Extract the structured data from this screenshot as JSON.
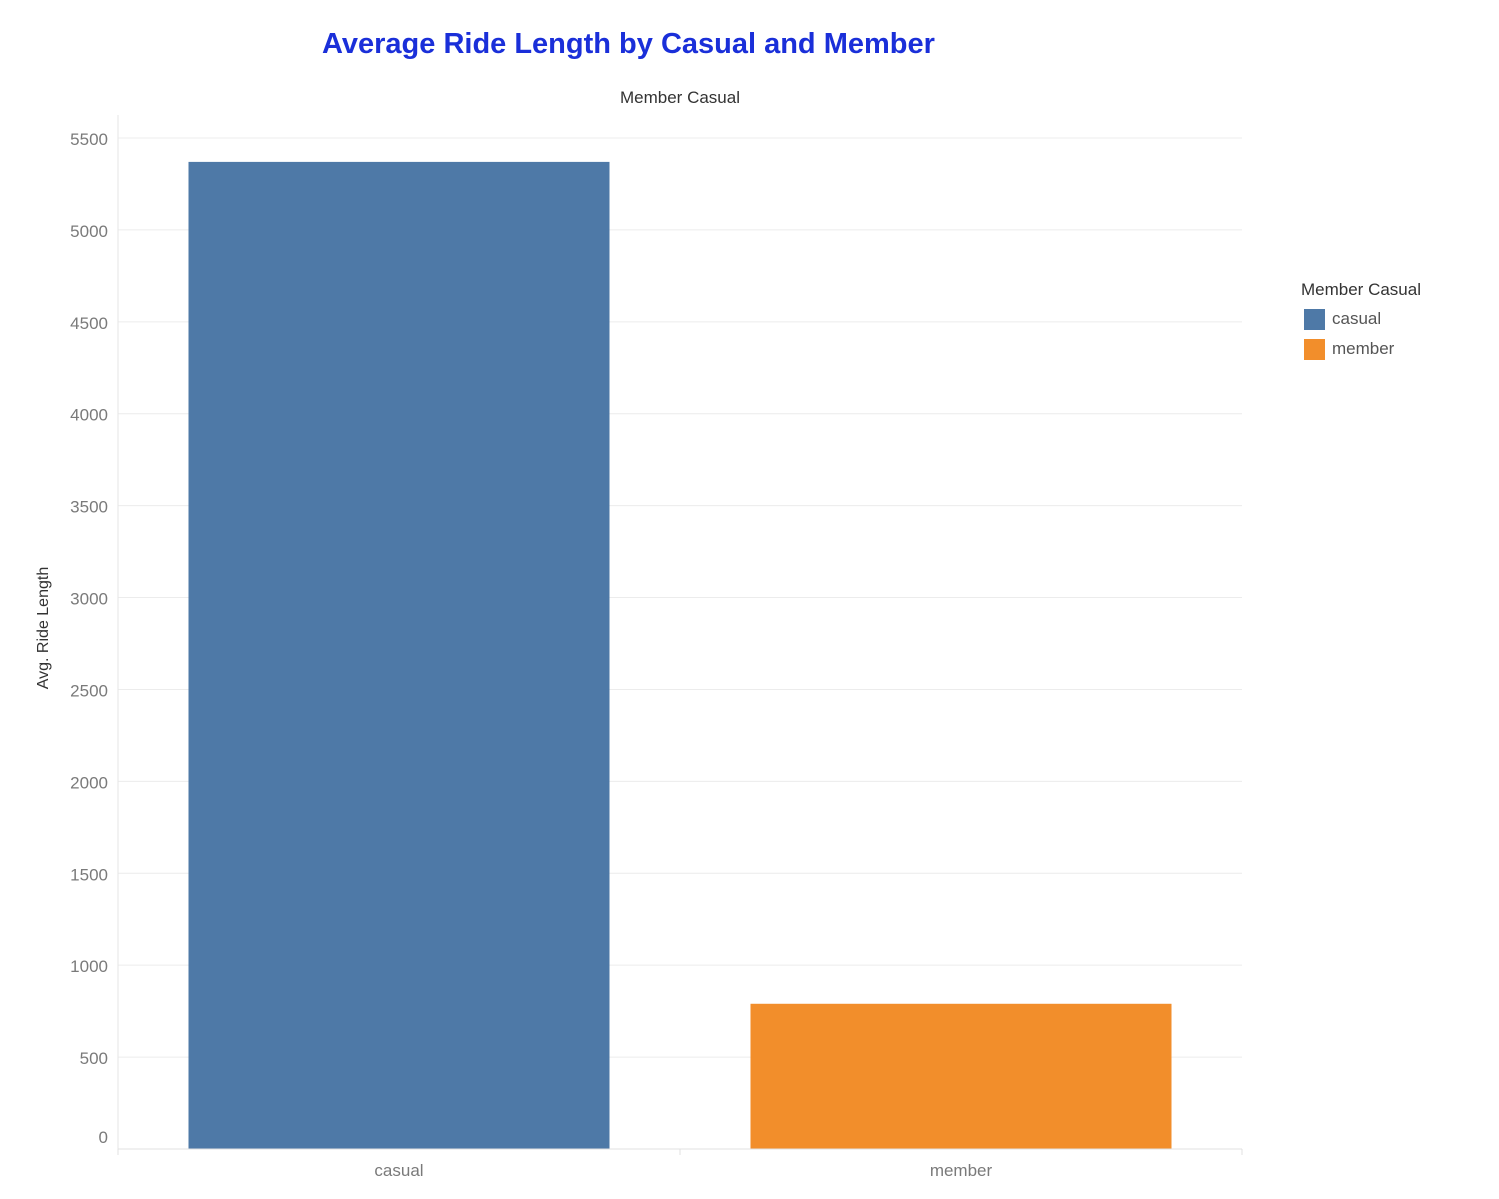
{
  "chart_data": {
    "type": "bar",
    "title": "Average Ride Length by Casual and Member",
    "column_header": "Member Casual",
    "xlabel": "",
    "ylabel": "Avg. Ride Length",
    "categories": [
      "casual",
      "member"
    ],
    "values": [
      5370,
      790
    ],
    "colors": [
      "#4e79a7",
      "#f28e2b"
    ],
    "ylim": [
      0,
      5600
    ],
    "yticks": [
      0,
      500,
      1000,
      1500,
      2000,
      2500,
      3000,
      3500,
      4000,
      4500,
      5000,
      5500
    ],
    "grid": true,
    "legend": {
      "title": "Member Casual",
      "position": "right",
      "items": [
        {
          "label": "casual",
          "color": "#4e79a7"
        },
        {
          "label": "member",
          "color": "#f28e2b"
        }
      ]
    }
  }
}
